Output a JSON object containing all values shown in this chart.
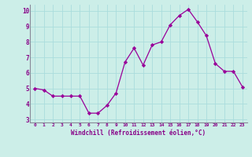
{
  "x": [
    0,
    1,
    2,
    3,
    4,
    5,
    6,
    7,
    8,
    9,
    10,
    11,
    12,
    13,
    14,
    15,
    16,
    17,
    18,
    19,
    20,
    21,
    22,
    23
  ],
  "y": [
    5.0,
    4.9,
    4.5,
    4.5,
    4.5,
    4.5,
    3.4,
    3.4,
    3.9,
    4.7,
    6.7,
    7.6,
    6.5,
    7.8,
    8.0,
    9.1,
    9.7,
    10.1,
    9.3,
    8.4,
    6.6,
    6.1,
    6.1,
    5.1
  ],
  "xlabel": "Windchill (Refroidissement éolien,°C)",
  "ylim": [
    3,
    10
  ],
  "xlim": [
    0,
    23
  ],
  "yticks": [
    3,
    4,
    5,
    6,
    7,
    8,
    9,
    10
  ],
  "xticks": [
    0,
    1,
    2,
    3,
    4,
    5,
    6,
    7,
    8,
    9,
    10,
    11,
    12,
    13,
    14,
    15,
    16,
    17,
    18,
    19,
    20,
    21,
    22,
    23
  ],
  "line_color": "#990099",
  "marker": "D",
  "marker_size": 2.2,
  "bg_color": "#cceee8",
  "grid_color": "#aadddd",
  "tick_color": "#880088",
  "label_color": "#880088",
  "font_family": "monospace",
  "border_color": "#888899"
}
